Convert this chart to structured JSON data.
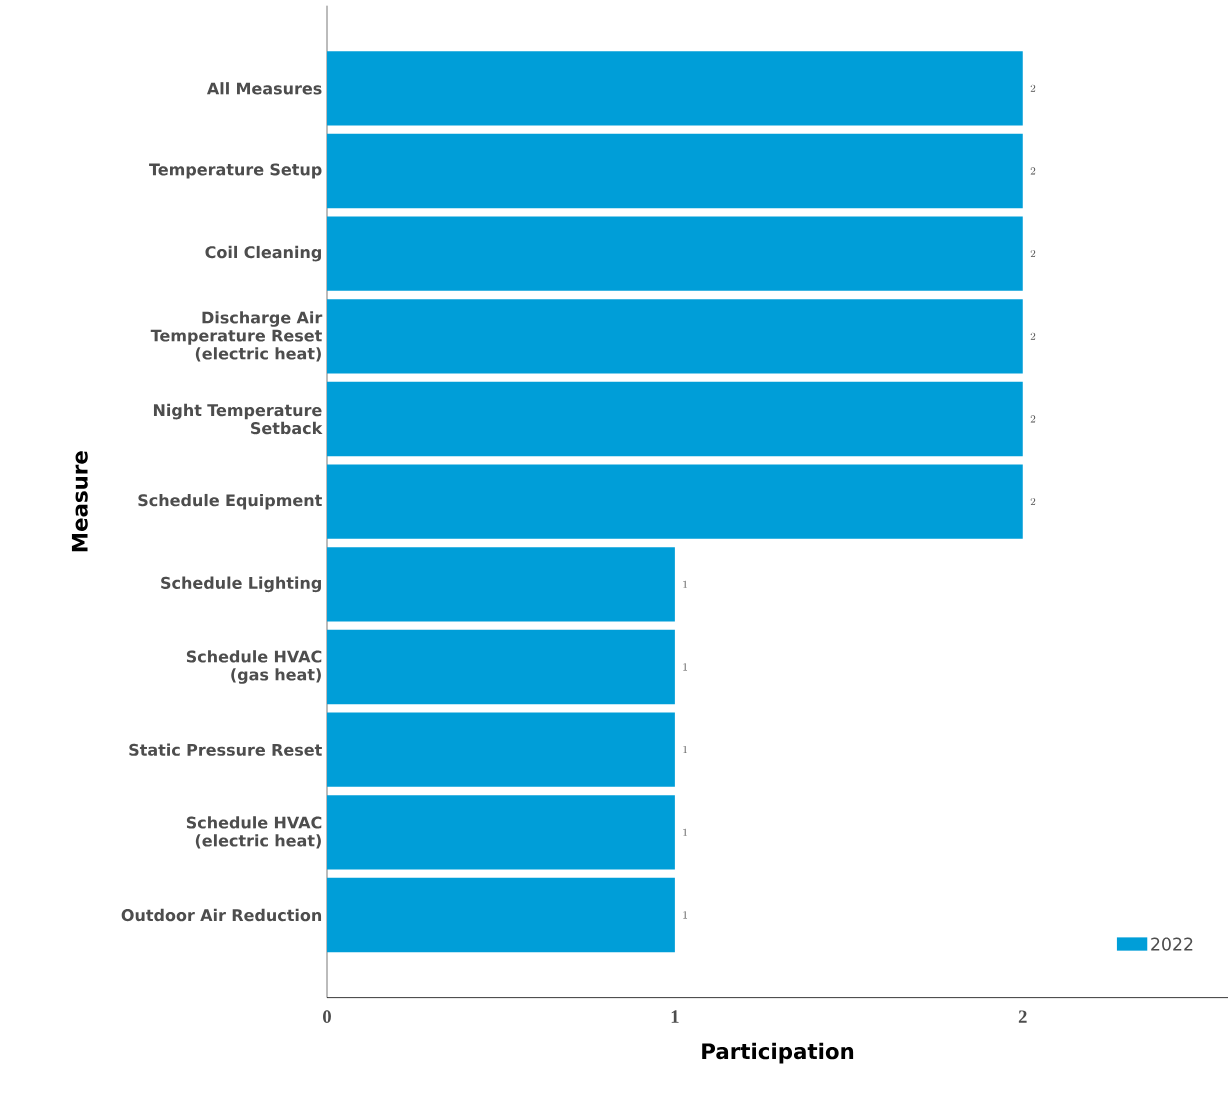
{
  "chart_data": {
    "type": "bar",
    "orientation": "horizontal",
    "xlabel": "Participation",
    "ylabel": "Measure",
    "categories": [
      "All Measures",
      "Temperature Setup",
      "Coil Cleaning",
      "Discharge Air Temperature Reset (electric heat)",
      "Night Temperature Setback",
      "Schedule Equipment",
      "Schedule Lighting",
      "Schedule HVAC (gas heat)",
      "Static Pressure Reset",
      "Schedule HVAC (electric heat)",
      "Outdoor Air Reduction"
    ],
    "series": [
      {
        "name": "2022",
        "color": "#009ed8",
        "values": [
          2,
          2,
          2,
          2,
          2,
          2,
          1,
          1,
          1,
          1,
          1
        ]
      }
    ],
    "xlim": [
      0,
      2.59
    ],
    "xticks": [
      0,
      1,
      2
    ],
    "data_labels": true,
    "legend": "bottom right"
  }
}
